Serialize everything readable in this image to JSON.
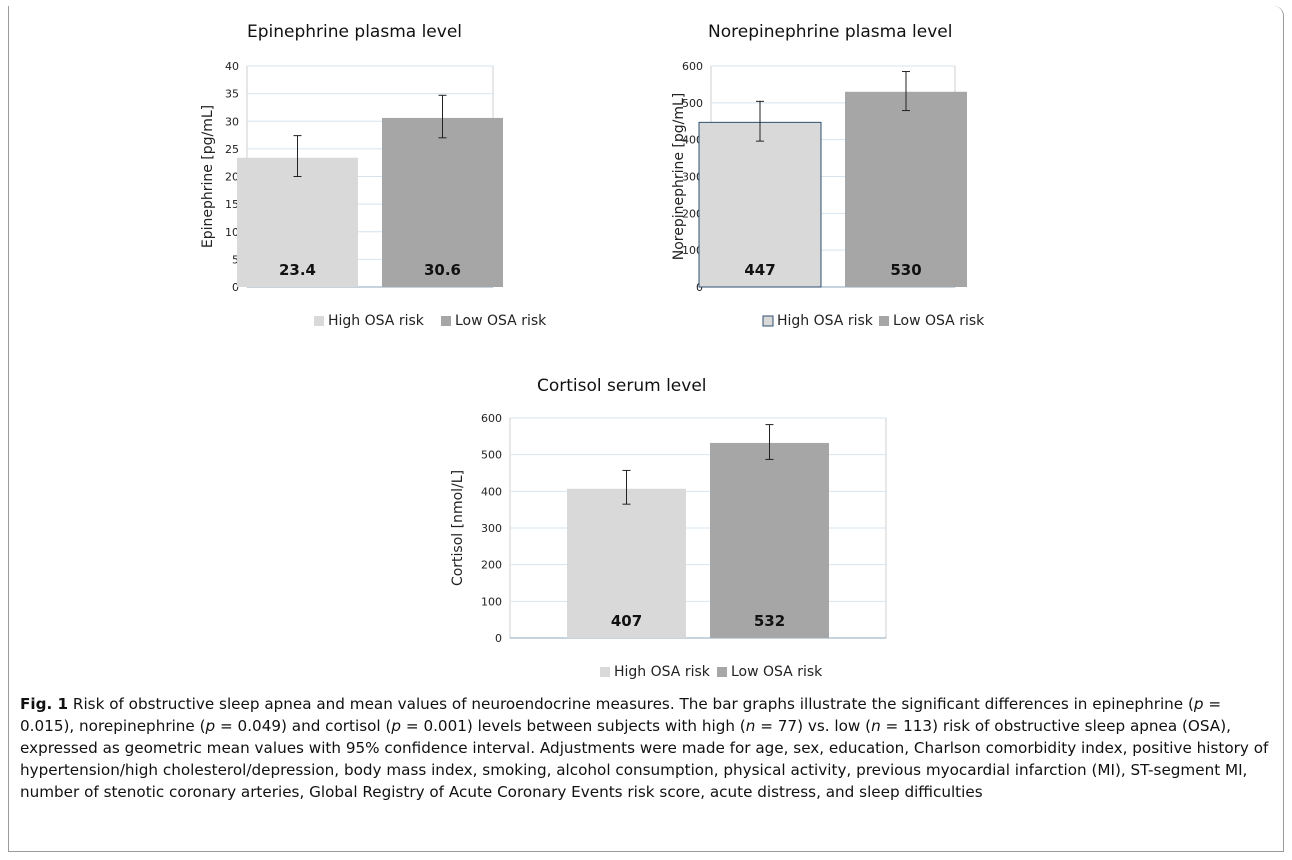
{
  "chart_data": [
    {
      "type": "bar",
      "title": "Epinephrine plasma level",
      "ylabel": "Epinephrine [pg/mL]",
      "xlabel": "",
      "ylim": [
        0,
        40
      ],
      "yticks": [
        0,
        5,
        10,
        15,
        20,
        25,
        30,
        35,
        40
      ],
      "grid": true,
      "legend_position": "bottom",
      "categories": [
        "High OSA risk",
        "Low OSA risk"
      ],
      "values": [
        23.4,
        30.6
      ],
      "value_labels": [
        "23.4",
        "30.6"
      ],
      "ci_low": [
        20.0,
        27.0
      ],
      "ci_high": [
        27.4,
        34.7
      ],
      "colors": [
        "#d9d9d9",
        "#a6a6a6"
      ]
    },
    {
      "type": "bar",
      "title": "Norepinephrine plasma level",
      "ylabel": "Norepinephrine [pg/mL]",
      "xlabel": "",
      "ylim": [
        0,
        600
      ],
      "yticks": [
        0,
        100,
        200,
        300,
        400,
        500,
        600
      ],
      "grid": true,
      "legend_position": "bottom",
      "categories": [
        "High OSA risk",
        "Low OSA risk"
      ],
      "values": [
        447,
        530
      ],
      "value_labels": [
        "447",
        "530"
      ],
      "ci_low": [
        396,
        479
      ],
      "ci_high": [
        504,
        585
      ],
      "colors": [
        "#d9d9d9",
        "#a6a6a6"
      ]
    },
    {
      "type": "bar",
      "title": "Cortisol serum level",
      "ylabel": "Cortisol [nmol/L]",
      "xlabel": "",
      "ylim": [
        0,
        600
      ],
      "yticks": [
        0,
        100,
        200,
        300,
        400,
        500,
        600
      ],
      "grid": true,
      "legend_position": "bottom",
      "categories": [
        "High OSA risk",
        "Low OSA risk"
      ],
      "values": [
        407,
        532
      ],
      "value_labels": [
        "407",
        "532"
      ],
      "ci_low": [
        365,
        487
      ],
      "ci_high": [
        457,
        582
      ],
      "colors": [
        "#d9d9d9",
        "#a6a6a6"
      ]
    }
  ],
  "caption": {
    "label": "Fig. 1",
    "text_1": " Risk of obstructive sleep apnea and mean values of neuroendocrine measures. The bar graphs illustrate the significant differences in epinephrine (",
    "p1_var": "p",
    "p1_val": " = 0.015), norepinephrine (",
    "p2_var": "p",
    "p2_val": " = 0.049) and cortisol (",
    "p3_var": "p",
    "p3_val": " = 0.001) levels between subjects with high (",
    "n1_var": "n",
    "n1_val": " = 77) vs. low (",
    "n2_var": "n",
    "n2_val": " = 113) risk of obstructive sleep apnea (OSA), expressed as geometric mean values with 95% confidence interval. Adjustments were made for age, sex, education, Charlson comorbidity index, positive history of hypertension/high cholesterol/depression, body mass index, smoking, alcohol consumption, physical activity, previous myocardial infarction (MI), ST-segment MI, number of stenotic coronary arteries, Global Registry of Acute Coronary Events risk score, acute distress, and sleep difficulties"
  }
}
